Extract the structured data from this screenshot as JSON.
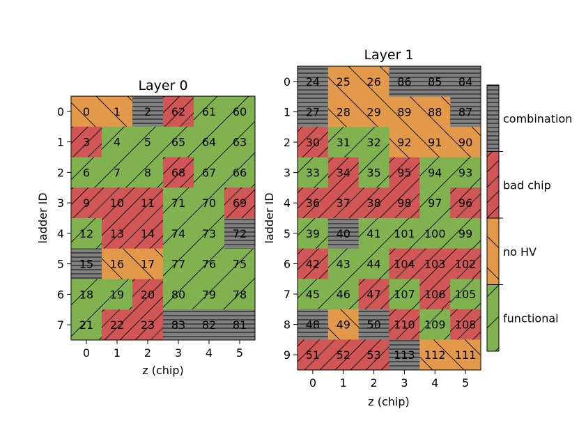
{
  "chart_data": {
    "type": "heatmap",
    "status_colors": {
      "functional": "#80b350",
      "no_hv": "#e3994a",
      "bad_chip": "#d15757",
      "combination": "#808080"
    },
    "status_patterns": {
      "functional": "diagonal-up",
      "no_hv": "diagonal-down",
      "bad_chip": "diagonal-up-dense",
      "combination": "horizontal"
    },
    "colorbar_labels": [
      "combination",
      "bad chip",
      "no HV",
      "functional"
    ],
    "panels": [
      {
        "title": "Layer 0",
        "xlabel": "z (chip)",
        "ylabel": "ladder ID",
        "x_ticks": [
          "0",
          "1",
          "2",
          "3",
          "4",
          "5"
        ],
        "y_ticks": [
          "0",
          "1",
          "2",
          "3",
          "4",
          "5",
          "6",
          "7"
        ],
        "labels": [
          [
            "0",
            "1",
            "2",
            "62",
            "61",
            "60"
          ],
          [
            "3",
            "4",
            "5",
            "65",
            "64",
            "63"
          ],
          [
            "6",
            "7",
            "8",
            "68",
            "67",
            "66"
          ],
          [
            "9",
            "10",
            "11",
            "71",
            "70",
            "69"
          ],
          [
            "12",
            "13",
            "14",
            "74",
            "73",
            "72"
          ],
          [
            "15",
            "16",
            "17",
            "77",
            "76",
            "75"
          ],
          [
            "18",
            "19",
            "20",
            "80",
            "79",
            "78"
          ],
          [
            "21",
            "22",
            "23",
            "83",
            "82",
            "81"
          ]
        ],
        "status": [
          [
            "no_hv",
            "no_hv",
            "combination",
            "bad_chip",
            "functional",
            "functional"
          ],
          [
            "bad_chip",
            "functional",
            "functional",
            "functional",
            "functional",
            "functional"
          ],
          [
            "functional",
            "functional",
            "functional",
            "bad_chip",
            "functional",
            "functional"
          ],
          [
            "bad_chip",
            "bad_chip",
            "bad_chip",
            "functional",
            "functional",
            "bad_chip"
          ],
          [
            "functional",
            "bad_chip",
            "bad_chip",
            "functional",
            "functional",
            "combination"
          ],
          [
            "combination",
            "no_hv",
            "no_hv",
            "functional",
            "functional",
            "functional"
          ],
          [
            "functional",
            "functional",
            "bad_chip",
            "functional",
            "functional",
            "functional"
          ],
          [
            "functional",
            "bad_chip",
            "bad_chip",
            "combination",
            "combination",
            "combination"
          ]
        ]
      },
      {
        "title": "Layer 1",
        "xlabel": "z (chip)",
        "ylabel": "ladder ID",
        "x_ticks": [
          "0",
          "1",
          "2",
          "3",
          "4",
          "5"
        ],
        "y_ticks": [
          "0",
          "1",
          "2",
          "3",
          "4",
          "5",
          "6",
          "7",
          "8",
          "9"
        ],
        "labels": [
          [
            "24",
            "25",
            "26",
            "86",
            "85",
            "84"
          ],
          [
            "27",
            "28",
            "29",
            "89",
            "88",
            "87"
          ],
          [
            "30",
            "31",
            "32",
            "92",
            "91",
            "90"
          ],
          [
            "33",
            "34",
            "35",
            "95",
            "94",
            "93"
          ],
          [
            "36",
            "37",
            "38",
            "98",
            "97",
            "96"
          ],
          [
            "39",
            "40",
            "41",
            "101",
            "100",
            "99"
          ],
          [
            "42",
            "43",
            "44",
            "104",
            "103",
            "102"
          ],
          [
            "45",
            "46",
            "47",
            "107",
            "106",
            "105"
          ],
          [
            "48",
            "49",
            "50",
            "110",
            "109",
            "108"
          ],
          [
            "51",
            "52",
            "53",
            "113",
            "112",
            "111"
          ]
        ],
        "status": [
          [
            "combination",
            "no_hv",
            "no_hv",
            "combination",
            "combination",
            "combination"
          ],
          [
            "combination",
            "no_hv",
            "no_hv",
            "no_hv",
            "no_hv",
            "combination"
          ],
          [
            "bad_chip",
            "functional",
            "functional",
            "no_hv",
            "no_hv",
            "no_hv"
          ],
          [
            "functional",
            "bad_chip",
            "functional",
            "bad_chip",
            "functional",
            "functional"
          ],
          [
            "bad_chip",
            "bad_chip",
            "bad_chip",
            "bad_chip",
            "functional",
            "bad_chip"
          ],
          [
            "functional",
            "combination",
            "functional",
            "functional",
            "functional",
            "functional"
          ],
          [
            "bad_chip",
            "functional",
            "functional",
            "bad_chip",
            "bad_chip",
            "bad_chip"
          ],
          [
            "functional",
            "functional",
            "bad_chip",
            "functional",
            "bad_chip",
            "functional"
          ],
          [
            "combination",
            "no_hv",
            "combination",
            "bad_chip",
            "functional",
            "bad_chip"
          ],
          [
            "bad_chip",
            "bad_chip",
            "bad_chip",
            "combination",
            "no_hv",
            "no_hv"
          ]
        ]
      }
    ]
  }
}
